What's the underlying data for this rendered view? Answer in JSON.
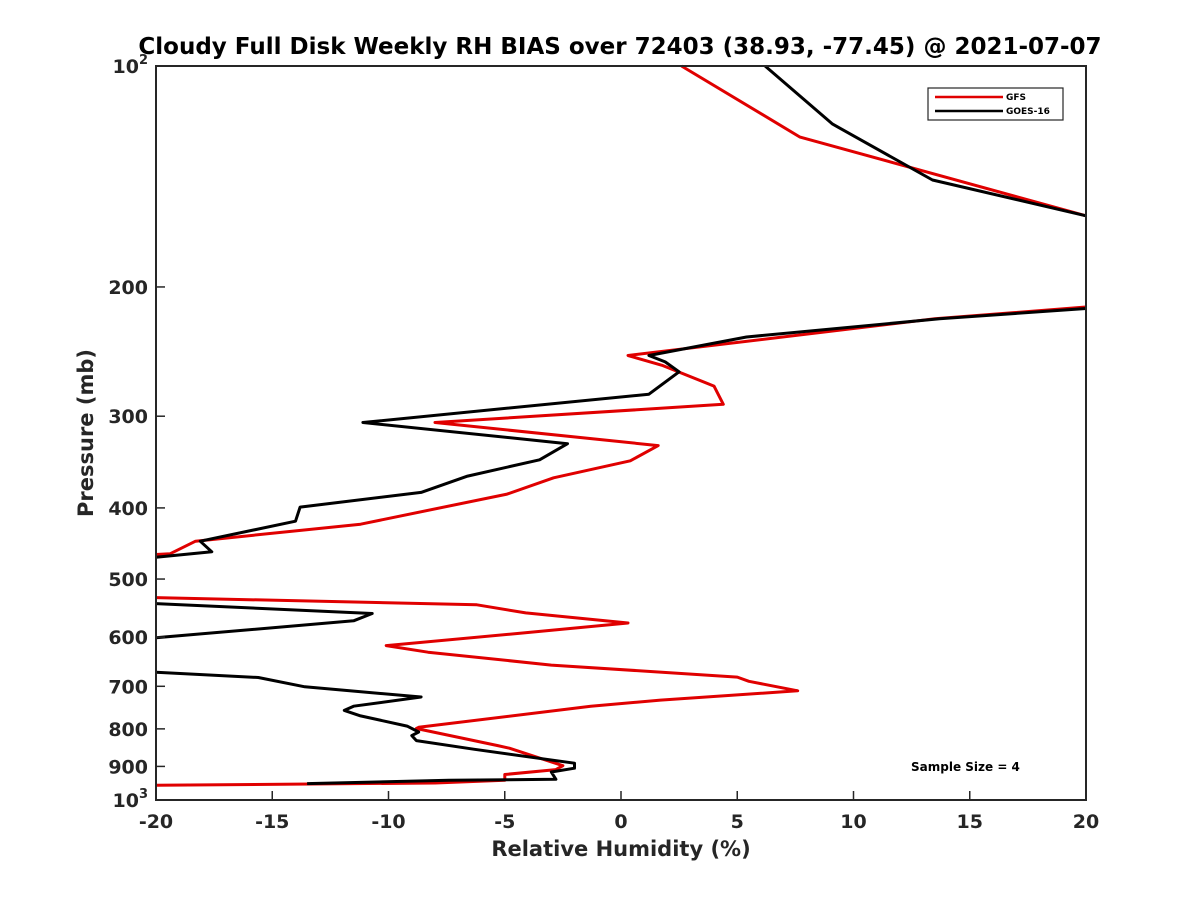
{
  "chart_data": {
    "type": "line",
    "title": "Cloudy Full Disk Weekly RH BIAS over 72403 (38.93, -77.45) @ 2021-07-07",
    "xlabel": "Relative Humidity (%)",
    "ylabel": "Pressure (mb)",
    "xlim": [
      -20,
      20
    ],
    "ylim": [
      100,
      1000
    ],
    "y_scale": "log",
    "y_reversed": true,
    "grid": false,
    "legend_position": "top-right",
    "x_ticks": [
      "-20",
      "-15",
      "-10",
      "-5",
      "0",
      "5",
      "10",
      "15",
      "20"
    ],
    "x_tick_values": [
      -20,
      -15,
      -10,
      -5,
      0,
      5,
      10,
      15,
      20
    ],
    "y_ticks": [
      {
        "value": 100,
        "base": "10",
        "exp": "2"
      },
      {
        "value": 200,
        "label": "200"
      },
      {
        "value": 300,
        "label": "300"
      },
      {
        "value": 400,
        "label": "400"
      },
      {
        "value": 500,
        "label": "500"
      },
      {
        "value": 600,
        "label": "600"
      },
      {
        "value": 700,
        "label": "700"
      },
      {
        "value": 800,
        "label": "800"
      },
      {
        "value": 900,
        "label": "900"
      },
      {
        "value": 1000,
        "base": "10",
        "exp": "3"
      }
    ],
    "annotation": "Sample Size = 4",
    "series": [
      {
        "name": "GFS",
        "color": "#e00000",
        "segments": [
          [
            [
              2.6,
              100
            ],
            [
              7.7,
              125
            ],
            [
              20,
              160
            ]
          ],
          [
            [
              20,
              213
            ],
            [
              13.5,
              221
            ],
            [
              0.3,
              248
            ],
            [
              1.8,
              256
            ],
            [
              4.0,
              273
            ],
            [
              4.4,
              289
            ],
            [
              -8.0,
              306
            ],
            [
              1.6,
              329
            ],
            [
              0.4,
              345
            ],
            [
              -2.9,
              364
            ],
            [
              -4.9,
              383
            ],
            [
              -11.2,
              421
            ],
            [
              -18.3,
              444
            ],
            [
              -19.4,
              462
            ],
            [
              -20,
              463
            ]
          ],
          [
            [
              -20,
              530
            ],
            [
              -6.2,
              542
            ],
            [
              -4.1,
              556
            ],
            [
              0.3,
              574
            ],
            [
              -4.4,
              593
            ],
            [
              -10.1,
              616
            ],
            [
              -8.3,
              629
            ],
            [
              -3.0,
              655
            ],
            [
              5.0,
              680
            ],
            [
              5.5,
              689
            ],
            [
              7.6,
              710
            ],
            [
              1.7,
              731
            ],
            [
              -1.3,
              745
            ],
            [
              -8.7,
              796
            ],
            [
              -8.8,
              799
            ],
            [
              -5.3,
              843
            ],
            [
              -4.8,
              850
            ],
            [
              -2.5,
              898
            ],
            [
              -2.8,
              909
            ],
            [
              -5.0,
              923
            ],
            [
              -5.0,
              940
            ],
            [
              -8.0,
              948
            ],
            [
              -20,
              955
            ]
          ]
        ]
      },
      {
        "name": "GOES-16",
        "color": "#000000",
        "segments": [
          [
            [
              6.2,
              100
            ],
            [
              9.1,
              120
            ],
            [
              13.4,
              143
            ],
            [
              20,
              160
            ]
          ],
          [
            [
              20,
              214
            ],
            [
              13.7,
              221
            ],
            [
              5.4,
              234
            ],
            [
              1.2,
              248
            ],
            [
              1.9,
              253
            ],
            [
              2.5,
              261
            ],
            [
              1.2,
              280
            ],
            [
              -11.1,
              306
            ],
            [
              -2.3,
              327
            ],
            [
              -3.5,
              344
            ],
            [
              -6.6,
              362
            ],
            [
              -8.6,
              381
            ],
            [
              -13.8,
              399
            ],
            [
              -14.0,
              417
            ],
            [
              -18.1,
              444
            ],
            [
              -17.6,
              459
            ],
            [
              -20,
              467
            ]
          ],
          [
            [
              -20,
              540
            ],
            [
              -10.7,
              557
            ],
            [
              -11.5,
              570
            ],
            [
              -20,
              601
            ]
          ],
          [
            [
              -20,
              670
            ],
            [
              -15.6,
              681
            ],
            [
              -13.6,
              701
            ],
            [
              -8.6,
              724
            ],
            [
              -11.5,
              745
            ],
            [
              -11.9,
              755
            ],
            [
              -11.2,
              768
            ],
            [
              -9.2,
              793
            ],
            [
              -8.7,
              808
            ],
            [
              -9.0,
              817
            ],
            [
              -8.8,
              830
            ],
            [
              -6.3,
              853
            ],
            [
              -2.0,
              891
            ],
            [
              -2.0,
              905
            ],
            [
              -3.0,
              916
            ],
            [
              -2.8,
              937
            ],
            [
              -7.4,
              940
            ],
            [
              -13.5,
              950
            ]
          ]
        ]
      }
    ]
  }
}
